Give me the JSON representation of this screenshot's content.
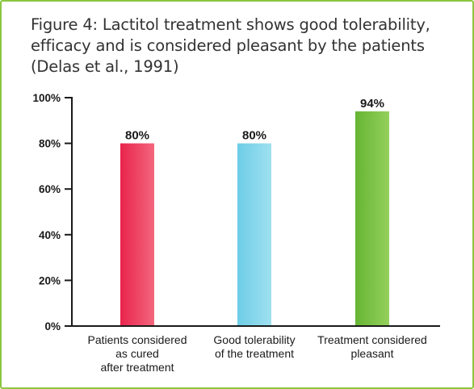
{
  "figure": {
    "title_lines": [
      "Figure 4:  Lactitol treatment shows good tolerability,",
      "efficacy and is considered pleasant by the patients",
      "(Delas et al., 1991)"
    ]
  },
  "colors": {
    "border": "#8cc63f",
    "axis": "#1a1a1a"
  },
  "chart_data": {
    "type": "bar",
    "title": "Figure 4:  Lactitol treatment shows good tolerability, efficacy and is considered pleasant by the patients (Delas et al., 1991)",
    "categories": [
      [
        "Patients considered",
        "as cured",
        "after treatment"
      ],
      [
        "Good tolerability",
        "of the treatment"
      ],
      [
        "Treatment considered",
        "pleasant"
      ]
    ],
    "values": [
      80,
      80,
      94
    ],
    "data_labels": [
      "80%",
      "80%",
      "94%"
    ],
    "bar_colors": [
      {
        "from": "#e8244c",
        "to": "#f4667e"
      },
      {
        "from": "#6dcde6",
        "to": "#9fe0f0"
      },
      {
        "from": "#66b533",
        "to": "#94d05c"
      }
    ],
    "ylim": [
      0,
      100
    ],
    "yticks": [
      0,
      20,
      40,
      60,
      80,
      100
    ],
    "ytick_labels": [
      "0%",
      "20%",
      "40%",
      "60%",
      "80%",
      "100%"
    ],
    "xlabel": "",
    "ylabel": "",
    "grid": false,
    "legend": "none"
  }
}
